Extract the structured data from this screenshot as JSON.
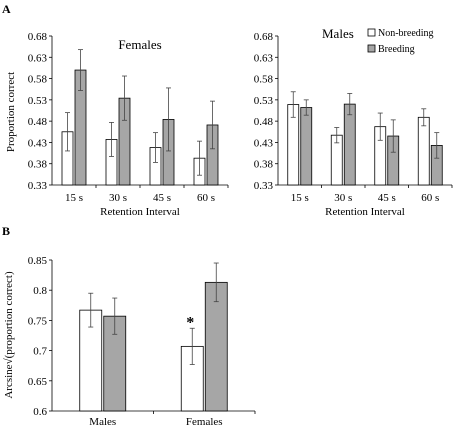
{
  "panel_labels": {
    "a": "A",
    "b": "B"
  },
  "legend": [
    {
      "label": "Non-breeding",
      "color": "#ffffff"
    },
    {
      "label": "Breeding",
      "color": "#a6a6a6"
    }
  ],
  "colors": {
    "non_breeding": "#ffffff",
    "breeding": "#a6a6a6",
    "stroke": "#000000",
    "error": "#444444"
  },
  "chart_data": [
    {
      "type": "bar",
      "panel": "A",
      "title": "Females",
      "xlabel": "Retention Interval",
      "ylabel": "Proportion correct",
      "ylim": [
        0.33,
        0.68
      ],
      "yticks": [
        "0.68",
        "0.63",
        "0.58",
        "0.53",
        "0.48",
        "0.43",
        "0.38",
        "0.33"
      ],
      "categories": [
        "15 s",
        "30 s",
        "45 s",
        "60 s"
      ],
      "series": [
        {
          "name": "Non-breeding",
          "values": [
            0.455,
            0.437,
            0.418,
            0.393
          ],
          "errors": [
            0.045,
            0.04,
            0.035,
            0.04
          ]
        },
        {
          "name": "Breeding",
          "values": [
            0.6,
            0.534,
            0.484,
            0.471
          ],
          "errors": [
            0.048,
            0.052,
            0.074,
            0.056
          ]
        }
      ]
    },
    {
      "type": "bar",
      "panel": "A",
      "title": "Males",
      "xlabel": "Retention Interval",
      "ylabel": "",
      "ylim": [
        0.33,
        0.68
      ],
      "yticks": [
        "0.68",
        "0.63",
        "0.58",
        "0.53",
        "0.48",
        "0.43",
        "0.38",
        "0.33"
      ],
      "categories": [
        "15 s",
        "30 s",
        "45 s",
        "60 s"
      ],
      "series": [
        {
          "name": "Non-breeding",
          "values": [
            0.519,
            0.447,
            0.467,
            0.489
          ],
          "errors": [
            0.03,
            0.018,
            0.032,
            0.02
          ]
        },
        {
          "name": "Breeding",
          "values": [
            0.512,
            0.52,
            0.445,
            0.423
          ],
          "errors": [
            0.018,
            0.025,
            0.038,
            0.03
          ]
        }
      ]
    },
    {
      "type": "bar",
      "panel": "B",
      "title": "",
      "xlabel": "",
      "ylabel": "Arcsine√(proportion correct)",
      "ylim": [
        0.6,
        0.85
      ],
      "yticks": [
        "0.85",
        "0.8",
        "0.75",
        "0.7",
        "0.65",
        "0.6"
      ],
      "categories": [
        "Males",
        "Females"
      ],
      "series": [
        {
          "name": "Non-breeding",
          "values": [
            0.767,
            0.707
          ],
          "errors": [
            0.028,
            0.03
          ]
        },
        {
          "name": "Breeding",
          "values": [
            0.757,
            0.813
          ],
          "errors": [
            0.03,
            0.032
          ]
        }
      ],
      "annotations": [
        {
          "text": "*",
          "category": "Females",
          "series": "Non-breeding"
        }
      ]
    }
  ]
}
